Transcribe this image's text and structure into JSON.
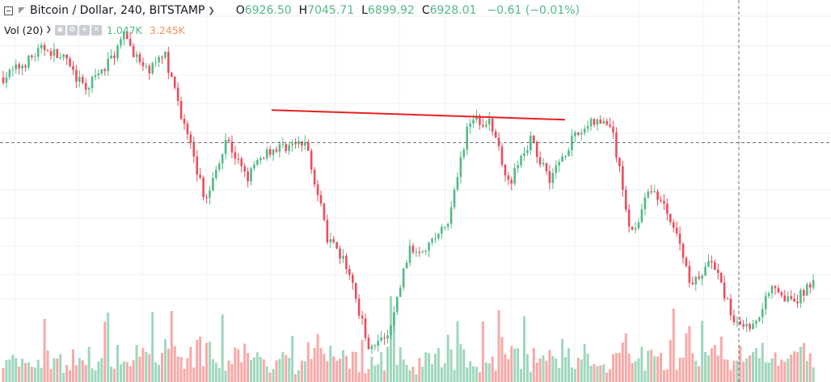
{
  "legend": {
    "symbol": "Bitcoin / Dollar, 240, BITSTAMP",
    "open_key": "O",
    "open": "6926.50",
    "high_key": "H",
    "high": "7045.71",
    "low_key": "L",
    "low": "6899.92",
    "close_key": "C",
    "close": "6928.01",
    "change": "−0.61 (−0.01%)"
  },
  "volume_legend": {
    "title": "Vol (20)",
    "value_1": "1.047K",
    "value_2": "3.245K"
  },
  "colors": {
    "up": "#53b987",
    "down": "#eb4d5c",
    "volume_up": "#9fd7bd",
    "volume_down": "#f7a9a7",
    "trendline": "#e8201f",
    "grid": "#eef0f3",
    "crosshair": "#6b6f78"
  },
  "icons": [
    "collapse-icon",
    "symbol-flag-icon",
    "chevron-down-icon",
    "eye-icon",
    "settings-icon",
    "plus-icon",
    "close-icon"
  ],
  "chart_data": {
    "type": "candlestick",
    "series": [
      {
        "name": "Bitcoin / Dollar, 240, BITSTAMP",
        "price_path": [
          8940,
          9070,
          9230,
          9120,
          8820,
          9020,
          9350,
          8990,
          9150,
          8430,
          7720,
          8350,
          7950,
          8220,
          8270,
          8280,
          7360,
          7080,
          6320,
          6380,
          7230,
          7300,
          7510,
          8540,
          8500,
          7900,
          8330,
          7950,
          8300,
          8500,
          8480,
          7400,
          7860,
          7550,
          6900,
          7150,
          6580,
          6490,
          6930,
          6700,
          6970
        ]
      },
      {
        "name": "Vol (20)",
        "type": "volume"
      }
    ],
    "trendline": {
      "from_price": 8620,
      "to_price": 8525
    },
    "crosshair": {
      "price": 8300
    },
    "grid": true
  }
}
